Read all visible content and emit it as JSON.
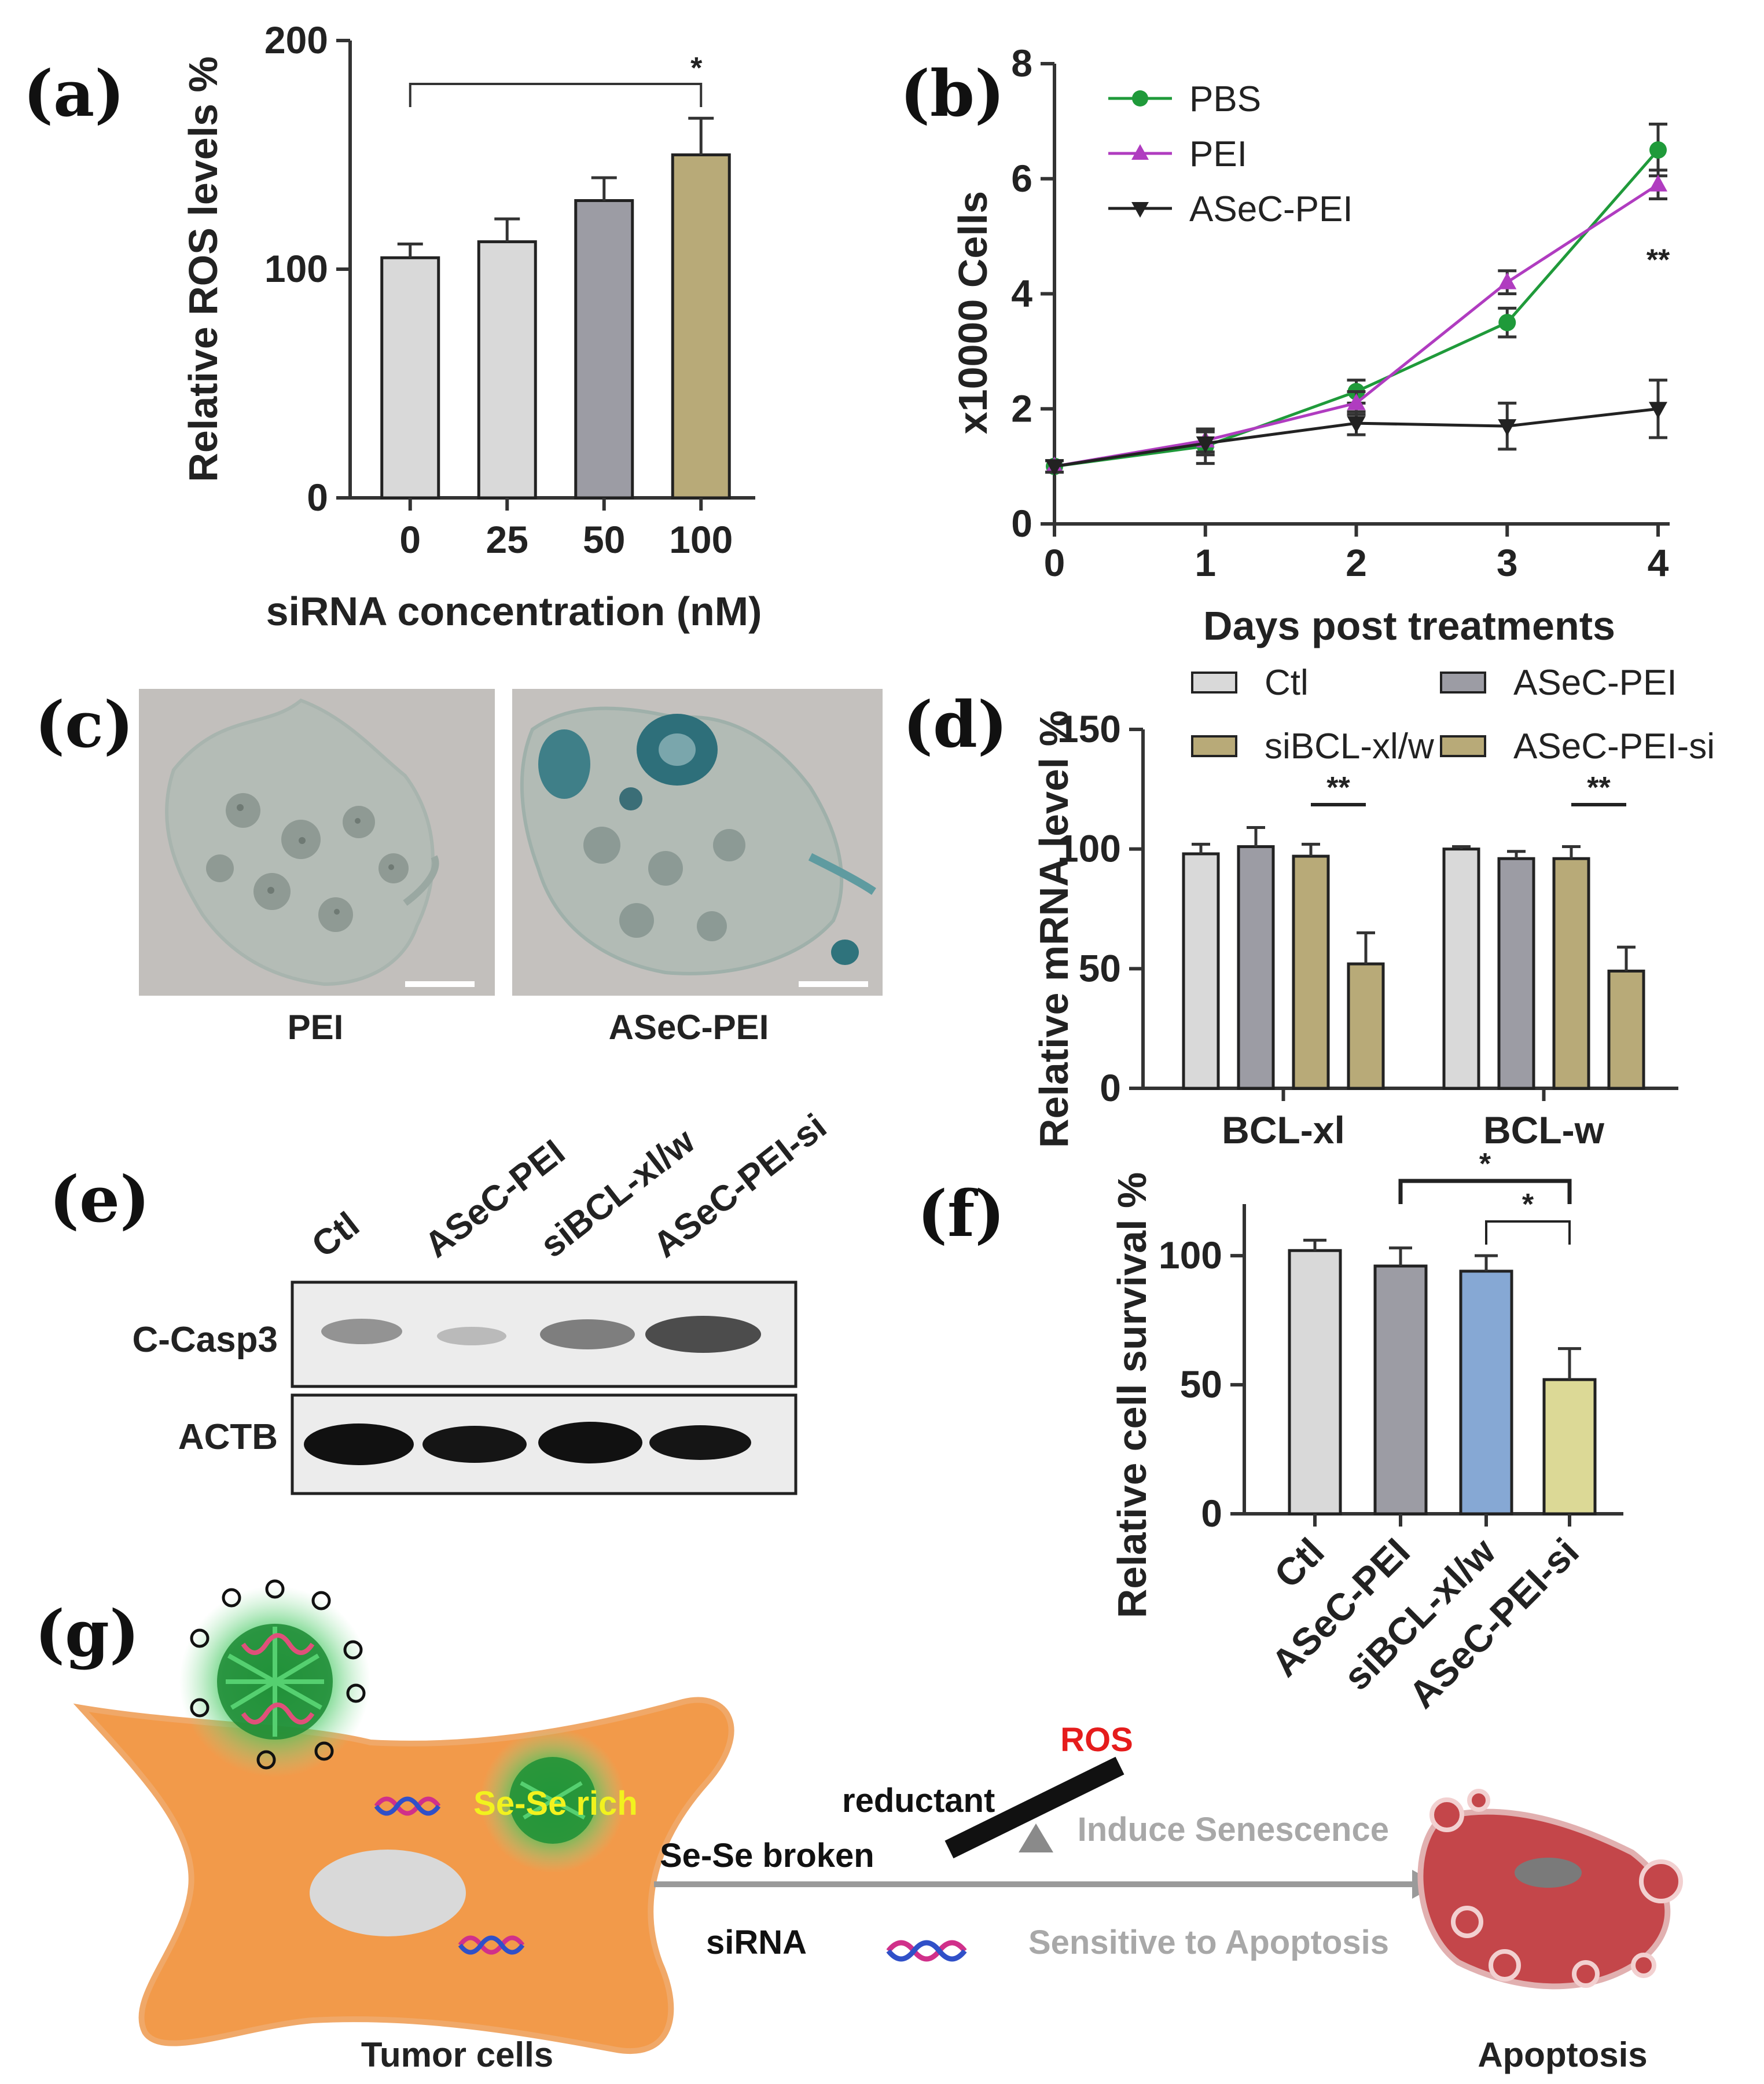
{
  "panels": {
    "a": "(a)",
    "b": "(b)",
    "c": "(c)",
    "d": "(d)",
    "e": "(e)",
    "f": "(f)",
    "g": "(g)"
  },
  "colors": {
    "light_gray": "#d9d9d9",
    "mid_gray": "#9c9ca4",
    "olive": "#b8aa78",
    "blue": "#86a8d4",
    "pale_yellow": "#dcd996",
    "green": "#1f9a3a",
    "purple": "#b03cc0",
    "black": "#222222",
    "cell_orange": "#f29a4a",
    "apoptosis_red": "#c4464a",
    "ros_red": "#e51c1c",
    "sese_yellow": "#f2f21e"
  },
  "chart_data": [
    {
      "panel": "a",
      "type": "bar",
      "categories": [
        "0",
        "25",
        "50",
        "100"
      ],
      "values": [
        105,
        112,
        130,
        150
      ],
      "errors": [
        6,
        10,
        10,
        16
      ],
      "bar_colors": [
        "#d9d9d9",
        "#d9d9d9",
        "#9c9ca4",
        "#b8aa78"
      ],
      "ylabel": "Relative ROS levels %",
      "xlabel": "siRNA concentration (nM)",
      "ylim": [
        0,
        200
      ],
      "yticks": [
        "0",
        "100",
        "200"
      ],
      "significance": [
        {
          "from": 0,
          "to": 3,
          "label": "*"
        }
      ]
    },
    {
      "panel": "b",
      "type": "line",
      "x": [
        0,
        1,
        2,
        3,
        4
      ],
      "series": [
        {
          "name": "PBS",
          "values": [
            1.0,
            1.35,
            2.3,
            3.5,
            6.5
          ],
          "errors": [
            0.1,
            0.3,
            0.2,
            0.25,
            0.45
          ],
          "color": "#1f9a3a",
          "marker": "circle"
        },
        {
          "name": "PEI",
          "values": [
            1.0,
            1.45,
            2.1,
            4.2,
            5.9
          ],
          "errors": [
            0.1,
            0.2,
            0.2,
            0.2,
            0.25
          ],
          "color": "#b03cc0",
          "marker": "triangle-up"
        },
        {
          "name": "ASeC-PEI",
          "values": [
            1.0,
            1.4,
            1.75,
            1.7,
            2.0
          ],
          "errors": [
            0.1,
            0.2,
            0.2,
            0.4,
            0.5
          ],
          "color": "#222222",
          "marker": "triangle-down"
        }
      ],
      "ylabel": "x10000 Cells",
      "xlabel": "Days post treatments",
      "ylim": [
        0,
        8
      ],
      "yticks": [
        "0",
        "2",
        "4",
        "6",
        "8"
      ],
      "xticks": [
        "0",
        "1",
        "2",
        "3",
        "4"
      ],
      "annotation": "**",
      "legend": "top-left"
    },
    {
      "panel": "d",
      "type": "bar",
      "categories": [
        "BCL-xl",
        "BCL-w"
      ],
      "series": [
        {
          "name": "Ctl",
          "values": [
            98,
            100
          ],
          "errors": [
            4,
            1
          ],
          "color": "#d9d9d9"
        },
        {
          "name": "ASeC-PEI",
          "values": [
            101,
            96
          ],
          "errors": [
            8,
            3
          ],
          "color": "#9c9ca4"
        },
        {
          "name": "siBCL-xl/w",
          "values": [
            97,
            96
          ],
          "errors": [
            5,
            5
          ],
          "color": "#b8aa78"
        },
        {
          "name": "ASeC-PEI-si",
          "values": [
            52,
            49
          ],
          "errors": [
            13,
            10
          ],
          "color": "#b8aa78"
        }
      ],
      "ylabel": "Relative mRNA  level %",
      "ylim": [
        0,
        150
      ],
      "yticks": [
        "0",
        "50",
        "100",
        "150"
      ],
      "significance": [
        {
          "group": 0,
          "label": "**"
        },
        {
          "group": 1,
          "label": "**"
        }
      ],
      "legend": "top"
    },
    {
      "panel": "f",
      "type": "bar",
      "categories": [
        "Ctl",
        "ASeC-PEI",
        "siBCL-xl/w",
        "ASeC-PEI-si"
      ],
      "values": [
        102,
        96,
        94,
        52
      ],
      "errors": [
        4,
        7,
        6,
        12
      ],
      "bar_colors": [
        "#d9d9d9",
        "#9c9ca4",
        "#86a8d4",
        "#dcd996"
      ],
      "ylabel": "Relative cell survival %",
      "ylim": [
        0,
        120
      ],
      "yticks": [
        "0",
        "50",
        "100"
      ],
      "significance": [
        {
          "from": 1,
          "to": 3,
          "label": "*"
        },
        {
          "from": 2,
          "to": 3,
          "label": "*"
        }
      ]
    }
  ],
  "microscopy": {
    "left_label": "PEI",
    "right_label": "ASeC-PEI"
  },
  "western": {
    "lanes": [
      "Ctl",
      "ASeC-PEI",
      "siBCL-xl/w",
      "ASeC-PEI-si"
    ],
    "rows": [
      "C-Casp3",
      "ACTB"
    ]
  },
  "diagram": {
    "se_se": "Se-Se rich",
    "ros": "ROS",
    "reductant": "reductant",
    "broken": "Se-Se broken",
    "sirna": "siRNA",
    "senescence": "Induce Senescence",
    "sensitive": "Sensitive to Apoptosis",
    "tumor": "Tumor cells",
    "apoptosis": "Apoptosis"
  }
}
